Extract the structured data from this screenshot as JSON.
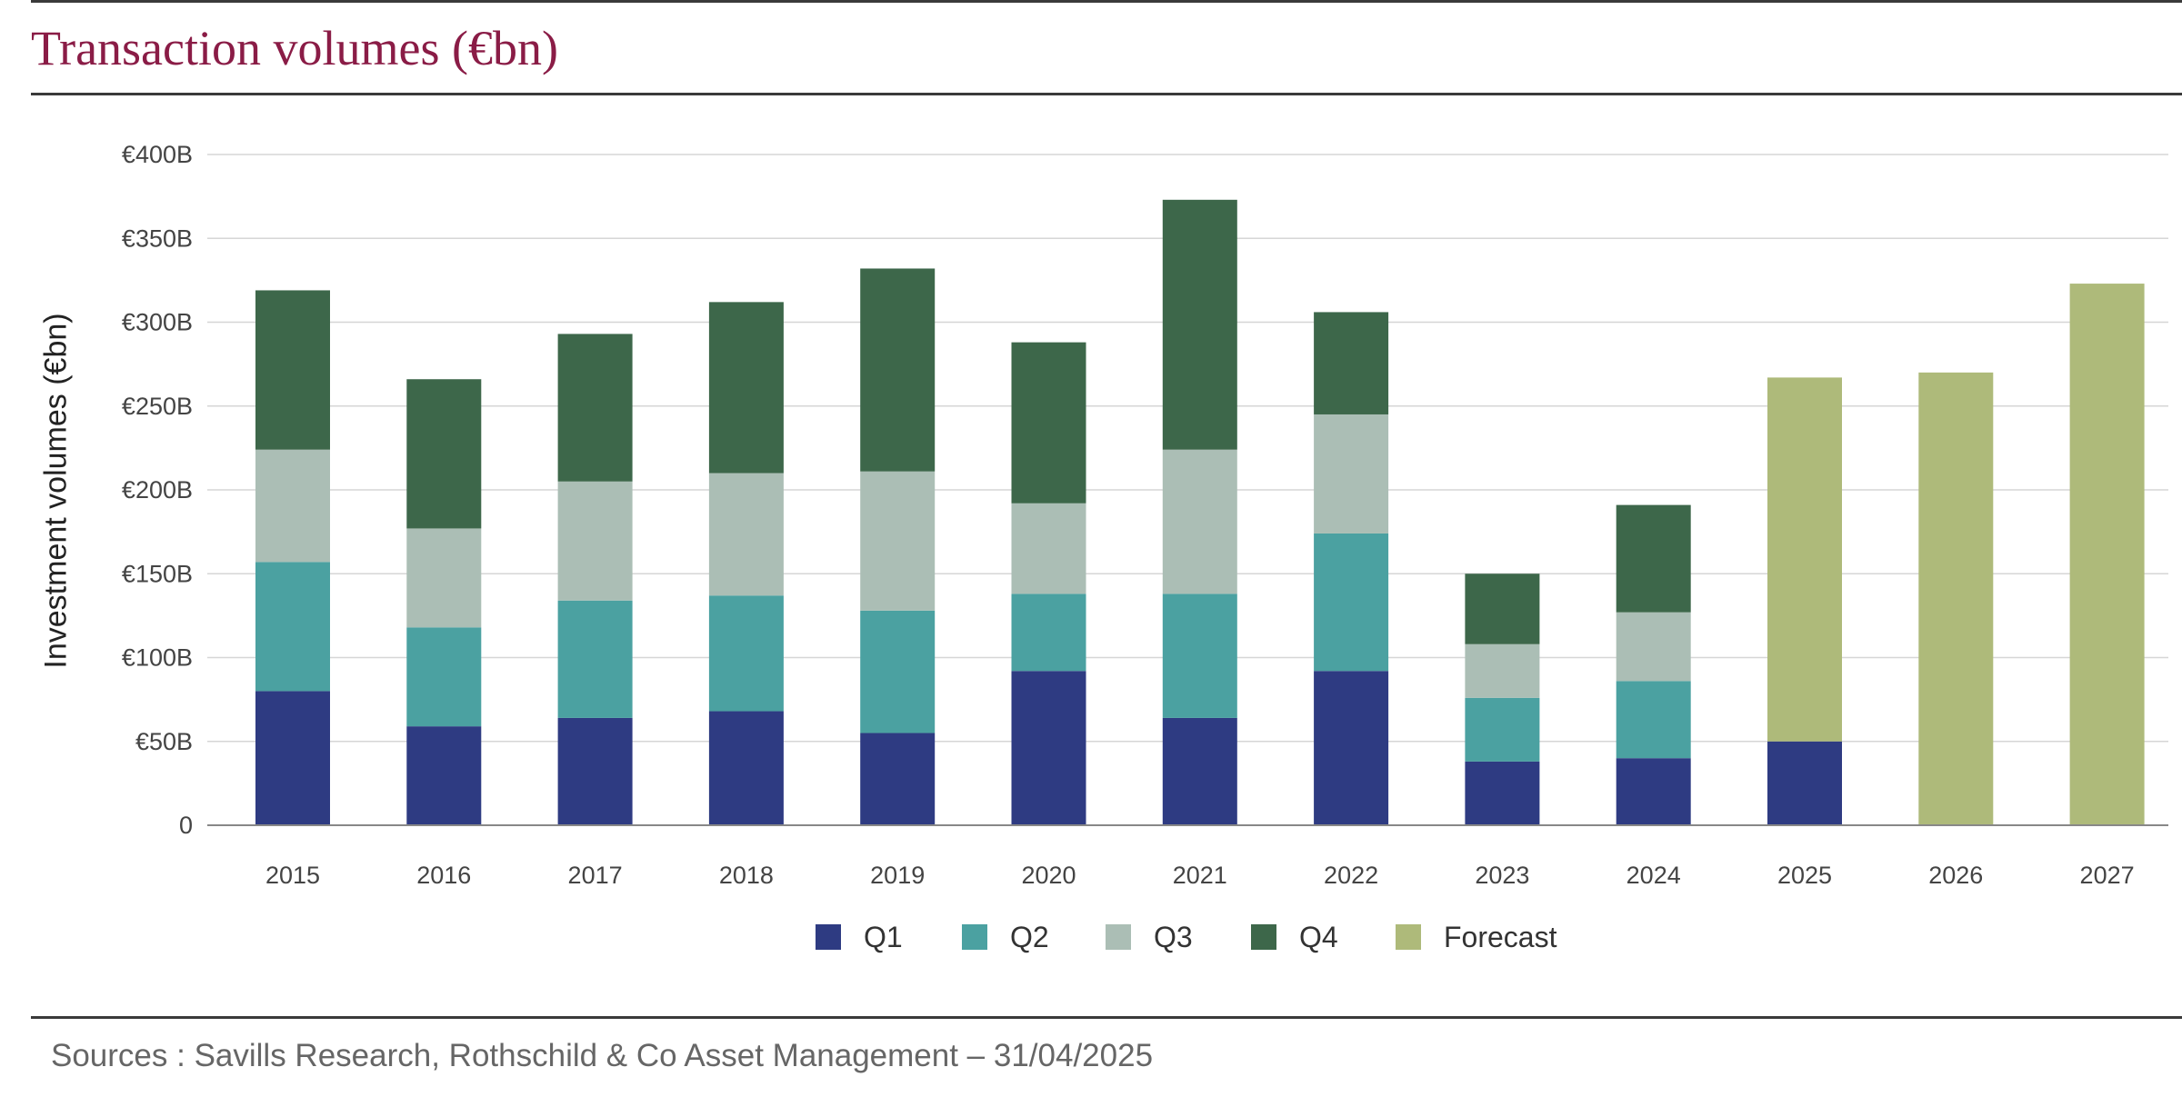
{
  "title": "Transaction volumes (€bn)",
  "sources": "Sources : Savills Research, Rothschild & Co Asset Management – 31/04/2025",
  "chart_data": {
    "type": "bar",
    "stacked": true,
    "title": "Transaction volumes (€bn)",
    "ylabel": "Investment volumes (€bn)",
    "xlabel": "",
    "ylim": [
      0,
      400
    ],
    "y_ticks": [
      {
        "value": 0,
        "label": "0"
      },
      {
        "value": 50,
        "label": "€50B"
      },
      {
        "value": 100,
        "label": "€100B"
      },
      {
        "value": 150,
        "label": "€150B"
      },
      {
        "value": 200,
        "label": "€200B"
      },
      {
        "value": 250,
        "label": "€250B"
      },
      {
        "value": 300,
        "label": "€300B"
      },
      {
        "value": 350,
        "label": "€350B"
      },
      {
        "value": 400,
        "label": "€400B"
      }
    ],
    "grid": true,
    "legend_position": "bottom",
    "categories": [
      "2015",
      "2016",
      "2017",
      "2018",
      "2019",
      "2020",
      "2021",
      "2022",
      "2023",
      "2024",
      "2025",
      "2026",
      "2027"
    ],
    "series": [
      {
        "name": "Q1",
        "color": "#2e3b82",
        "values": [
          80,
          59,
          64,
          68,
          55,
          92,
          64,
          92,
          38,
          40,
          50,
          0,
          0
        ]
      },
      {
        "name": "Q2",
        "color": "#4ba1a1",
        "values": [
          77,
          59,
          70,
          69,
          73,
          46,
          74,
          82,
          38,
          46,
          0,
          0,
          0
        ]
      },
      {
        "name": "Q3",
        "color": "#abbeb5",
        "values": [
          67,
          59,
          71,
          73,
          83,
          54,
          86,
          71,
          32,
          41,
          0,
          0,
          0
        ]
      },
      {
        "name": "Q4",
        "color": "#3d674a",
        "values": [
          95,
          89,
          88,
          102,
          121,
          96,
          149,
          61,
          42,
          64,
          0,
          0,
          0
        ]
      },
      {
        "name": "Forecast",
        "color": "#aeba7a",
        "values": [
          0,
          0,
          0,
          0,
          0,
          0,
          0,
          0,
          0,
          0,
          217,
          270,
          323
        ]
      }
    ]
  }
}
